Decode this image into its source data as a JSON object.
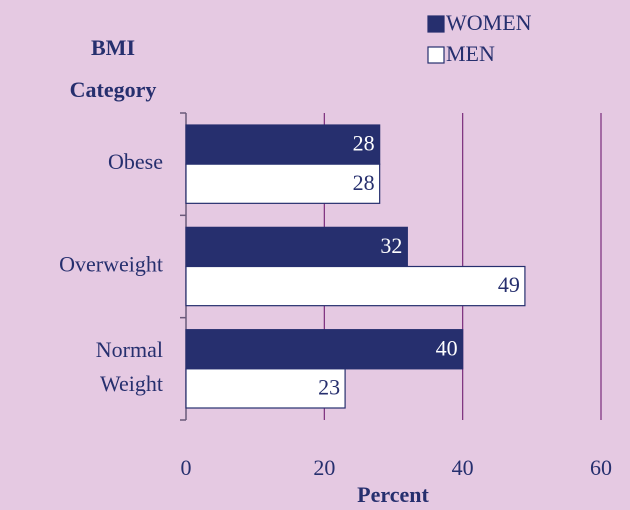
{
  "chart_data": {
    "type": "bar",
    "orientation": "horizontal",
    "y_axis_label": "BMI Category",
    "x_axis_label": "Percent",
    "categories": [
      "Obese",
      "Overweight",
      "Normal Weight"
    ],
    "series": [
      {
        "name": "WOMEN",
        "color": "#262f6e",
        "values": [
          28,
          32,
          40
        ]
      },
      {
        "name": "MEN",
        "color": "#ffffff",
        "values": [
          28,
          49,
          23
        ]
      }
    ],
    "xlim": [
      0,
      60
    ],
    "xticks": [
      0,
      20,
      40,
      60
    ],
    "grid": true,
    "legend": "top-right"
  }
}
